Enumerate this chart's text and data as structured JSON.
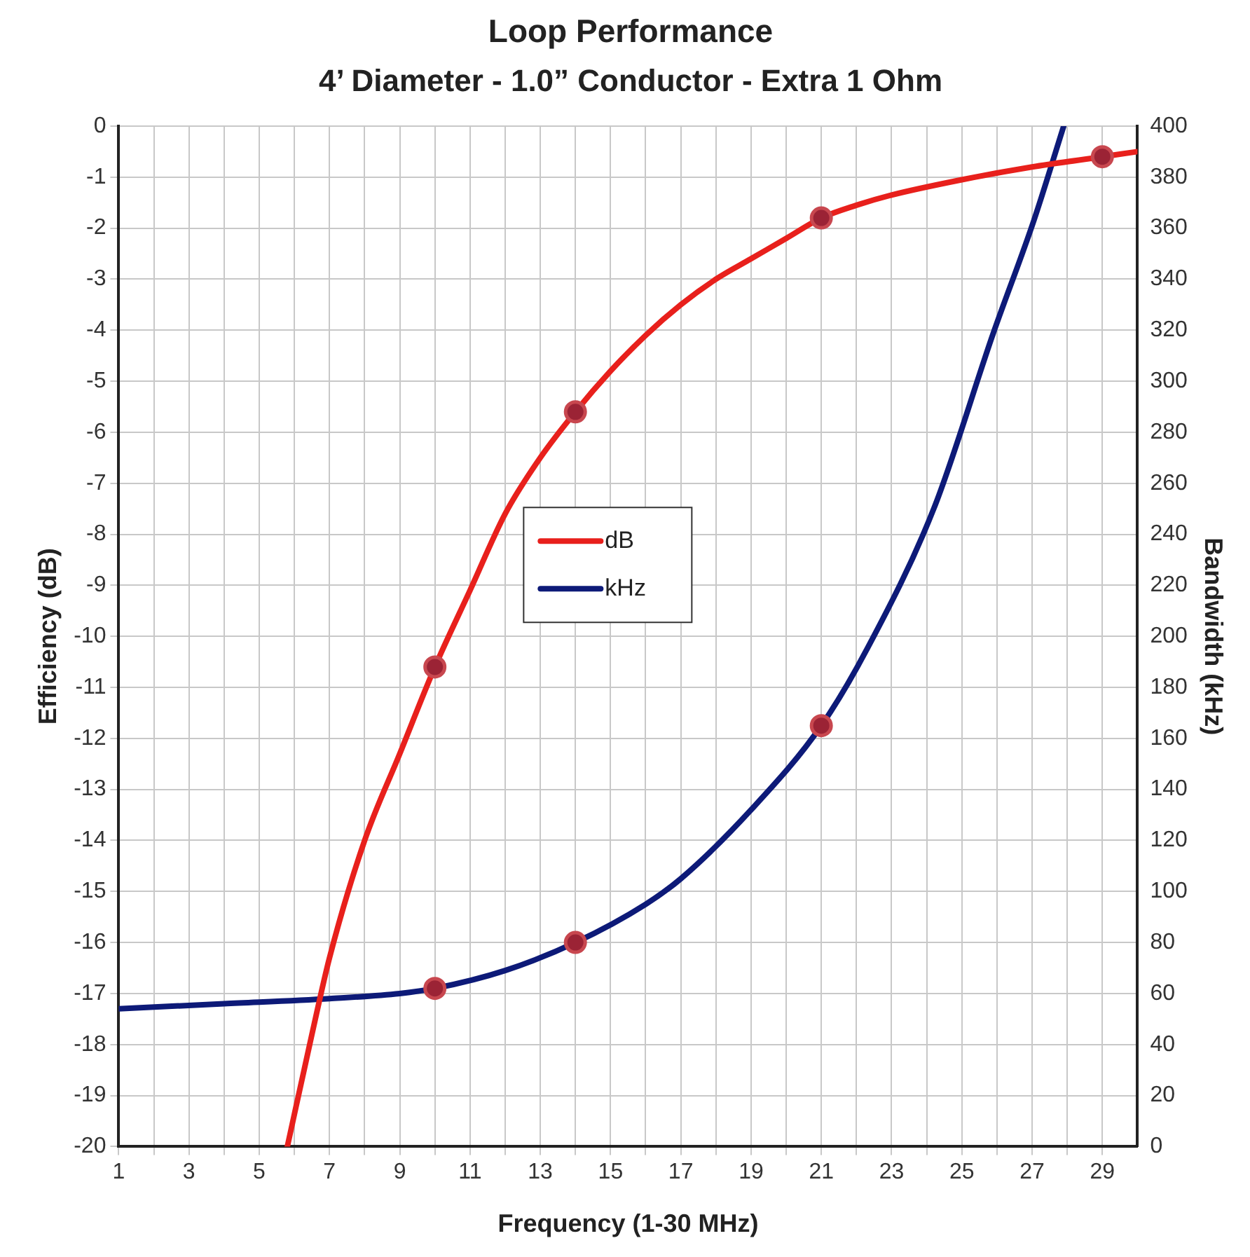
{
  "chart_data": {
    "type": "line",
    "title": "Loop Performance",
    "subtitle": "4’ Diameter - 1.0” Conductor - Extra 1 Ohm",
    "xlabel": "Frequency (1-30 MHz)",
    "ylabel": "Efficiency (dB)",
    "y2label": "Bandwidth (kHz)",
    "xlim": [
      1,
      30
    ],
    "xticks": [
      1,
      {
        "value": 2,
        "label": null
      },
      3,
      {
        "value": 4,
        "label": null
      },
      5,
      {
        "value": 6,
        "label": null
      },
      7,
      {
        "value": 8,
        "label": null
      },
      9,
      {
        "value": 10,
        "label": null
      },
      11,
      {
        "value": 12,
        "label": null
      },
      13,
      {
        "value": 14,
        "label": null
      },
      15,
      {
        "value": 16,
        "label": null
      },
      17,
      {
        "value": 18,
        "label": null
      },
      19,
      {
        "value": 20,
        "label": null
      },
      21,
      {
        "value": 22,
        "label": null
      },
      23,
      {
        "value": 24,
        "label": null
      },
      25,
      {
        "value": 26,
        "label": null
      },
      27,
      {
        "value": 28,
        "label": null
      },
      29
    ],
    "ylim": [
      -20,
      0
    ],
    "yticks": [
      -20,
      -19,
      -18,
      -17,
      -16,
      -15,
      -14,
      -13,
      -12,
      -11,
      -10,
      -9,
      -8,
      -7,
      -6,
      -5,
      -4,
      -3,
      -2,
      -1,
      0
    ],
    "y2lim": [
      0,
      400
    ],
    "y2ticks": [
      0,
      20,
      40,
      60,
      80,
      100,
      120,
      140,
      160,
      180,
      200,
      220,
      240,
      260,
      280,
      300,
      320,
      340,
      360,
      380,
      400
    ],
    "grid": true,
    "legend": "center",
    "line_style": "solid",
    "series": [
      {
        "name": "dB",
        "type": "line",
        "marker": "none",
        "color": "#e8201c",
        "x": [
          5.8,
          6.5,
          7,
          8,
          9,
          10,
          11,
          12,
          13,
          14,
          15,
          16,
          17,
          18,
          19,
          20,
          21,
          22,
          23,
          25,
          27,
          29,
          30
        ],
        "values": [
          -20,
          -17.8,
          -16.3,
          -14.0,
          -12.3,
          -10.6,
          -9.1,
          -7.6,
          -6.5,
          -5.6,
          -4.8,
          -4.1,
          -3.5,
          -3.0,
          -2.6,
          -2.2,
          -1.8,
          -1.55,
          -1.35,
          -1.05,
          -0.8,
          -0.6,
          -0.5
        ]
      },
      {
        "name": "kHz",
        "type": "line",
        "marker": "none",
        "axis": "y2",
        "color": "#0d1a78",
        "x": [
          1,
          4,
          7,
          9,
          10,
          12,
          14,
          16,
          17,
          19,
          21,
          22.3,
          24.2,
          25.9,
          27.05,
          27.9
        ],
        "values": [
          54,
          56,
          58,
          60,
          62,
          69,
          80,
          95,
          105,
          132,
          165,
          195,
          250,
          319,
          363,
          400
        ]
      },
      {
        "type": "scatter",
        "marker": "circle",
        "color": "#9b2335",
        "x": [
          10,
          14,
          21,
          29
        ],
        "values": [
          -10.6,
          -5.6,
          -1.8,
          -0.6
        ]
      },
      {
        "type": "scatter",
        "marker": "circle",
        "axis": "y2",
        "color": "#9b2335",
        "x": [
          10,
          14,
          21
        ],
        "values": [
          62,
          80,
          165
        ]
      }
    ]
  }
}
